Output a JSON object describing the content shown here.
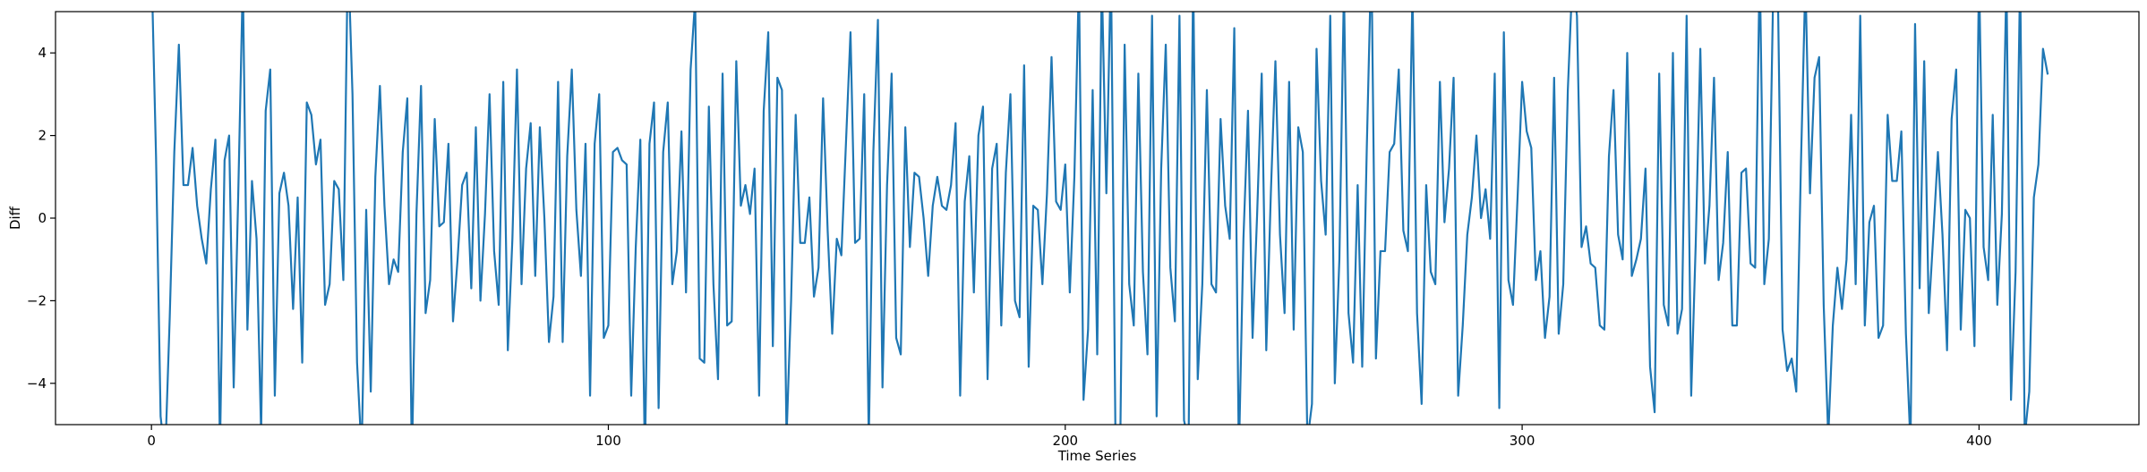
{
  "chart_data": {
    "type": "line",
    "title": "",
    "xlabel": "Time Series",
    "ylabel": "Diff",
    "xlim": [
      -21,
      435
    ],
    "ylim": [
      -5,
      5
    ],
    "xticks": [
      0,
      100,
      200,
      300,
      400
    ],
    "yticks": [
      -4,
      -2,
      0,
      2,
      4
    ],
    "grid": false,
    "legend": "none",
    "line_color": "#1f77b4",
    "series": [
      {
        "values": [
          6.2,
          1.5,
          -4.8,
          -5.8,
          -2.4,
          1.6,
          4.2,
          0.8,
          0.8,
          1.7,
          0.3,
          -0.5,
          -1.1,
          0.7,
          1.9,
          -5.6,
          1.4,
          2.0,
          -4.1,
          0.6,
          5.8,
          -2.7,
          0.9,
          -0.5,
          -5.2,
          2.6,
          3.6,
          -4.3,
          0.6,
          1.1,
          0.3,
          -2.2,
          0.5,
          -3.5,
          2.8,
          2.5,
          1.3,
          1.9,
          -2.1,
          -1.6,
          0.9,
          0.7,
          -1.5,
          6.5,
          3.0,
          -3.5,
          -5.7,
          0.2,
          -4.2,
          1.0,
          3.2,
          0.3,
          -1.6,
          -1.0,
          -1.3,
          1.6,
          2.9,
          -5.9,
          0.1,
          3.2,
          -2.3,
          -1.5,
          2.4,
          -0.2,
          -0.1,
          1.8,
          -2.5,
          -1.0,
          0.8,
          1.1,
          -1.7,
          2.2,
          -2.0,
          0.1,
          3.0,
          -0.8,
          -2.1,
          3.3,
          -3.2,
          -0.5,
          3.6,
          -1.6,
          1.2,
          2.3,
          -1.4,
          2.2,
          0.0,
          -3.0,
          -1.9,
          3.3,
          -3.0,
          1.5,
          3.6,
          0.2,
          -1.4,
          1.8,
          -4.3,
          1.8,
          3.0,
          -2.9,
          -2.6,
          1.6,
          1.7,
          1.4,
          1.3,
          -4.3,
          -0.7,
          1.9,
          -5.9,
          1.8,
          2.8,
          -4.6,
          1.6,
          2.8,
          -1.6,
          -0.8,
          2.1,
          -1.8,
          3.6,
          5.3,
          -3.4,
          -3.5,
          2.7,
          -1.6,
          -3.9,
          3.5,
          -2.6,
          -2.5,
          3.8,
          0.3,
          0.8,
          0.1,
          1.2,
          -4.3,
          2.6,
          4.5,
          -3.1,
          3.4,
          3.1,
          -5.3,
          -2.0,
          2.5,
          -0.6,
          -0.6,
          0.5,
          -1.9,
          -1.2,
          2.9,
          -0.3,
          -2.8,
          -0.5,
          -0.9,
          1.8,
          4.5,
          -0.6,
          -0.5,
          3.0,
          -5.4,
          1.6,
          4.8,
          -4.1,
          0.8,
          3.5,
          -2.9,
          -3.3,
          2.2,
          -0.7,
          1.1,
          1.0,
          0.0,
          -1.4,
          0.3,
          1.0,
          0.3,
          0.2,
          0.8,
          2.3,
          -4.3,
          0.4,
          1.5,
          -1.8,
          2.0,
          2.7,
          -3.9,
          1.2,
          1.8,
          -2.6,
          1.1,
          3.0,
          -2.0,
          -2.4,
          3.7,
          -3.6,
          0.3,
          0.2,
          -1.6,
          0.6,
          3.9,
          0.4,
          0.2,
          1.3,
          -1.8,
          1.0,
          5.8,
          -4.4,
          -2.7,
          3.1,
          -3.3,
          5.8,
          0.6,
          6.2,
          -5.4,
          -5.9,
          4.2,
          -1.6,
          -2.6,
          3.5,
          -1.3,
          -3.3,
          4.9,
          -4.8,
          1.2,
          4.2,
          -1.2,
          -2.5,
          4.9,
          -4.9,
          -5.4,
          5.9,
          -3.9,
          -1.6,
          3.1,
          -1.6,
          -1.8,
          2.4,
          0.3,
          -0.5,
          4.6,
          -5.8,
          -0.5,
          2.6,
          -2.9,
          0.1,
          3.5,
          -3.2,
          0.6,
          3.8,
          -0.4,
          -2.3,
          3.3,
          -2.7,
          2.2,
          1.6,
          -5.4,
          -4.5,
          4.1,
          0.9,
          -0.4,
          4.9,
          -4.0,
          -1.0,
          5.6,
          -2.3,
          -3.5,
          0.8,
          -3.6,
          1.7,
          6.4,
          -3.4,
          -0.8,
          -0.8,
          1.6,
          1.8,
          3.6,
          -0.3,
          -0.8,
          5.5,
          -2.3,
          -4.5,
          0.8,
          -1.3,
          -1.6,
          3.3,
          -0.1,
          1.2,
          3.4,
          -4.3,
          -2.6,
          -0.4,
          0.5,
          2.0,
          0.0,
          0.7,
          -0.5,
          3.5,
          -4.6,
          4.5,
          -1.5,
          -2.1,
          0.5,
          3.3,
          2.1,
          1.7,
          -1.5,
          -0.8,
          -2.9,
          -1.9,
          3.4,
          -2.8,
          -1.6,
          3.1,
          5.8,
          4.9,
          -0.7,
          -0.2,
          -1.1,
          -1.2,
          -2.6,
          -2.7,
          1.5,
          3.1,
          -0.4,
          -1.0,
          4.0,
          -1.4,
          -1.0,
          -0.5,
          1.2,
          -3.6,
          -4.7,
          3.5,
          -2.1,
          -2.6,
          4.0,
          -2.8,
          -2.2,
          4.9,
          -4.3,
          -0.6,
          4.1,
          -1.1,
          0.3,
          3.4,
          -1.5,
          -0.6,
          1.6,
          -2.6,
          -2.6,
          1.1,
          1.2,
          -1.1,
          -1.2,
          6.2,
          -1.6,
          -0.5,
          5.8,
          5.3,
          -2.7,
          -3.7,
          -3.4,
          -4.2,
          1.2,
          5.8,
          0.6,
          3.4,
          3.9,
          -2.1,
          -5.3,
          -2.6,
          -1.2,
          -2.2,
          -1.0,
          2.5,
          -1.6,
          4.9,
          -2.6,
          -0.1,
          0.3,
          -2.9,
          -2.6,
          2.5,
          0.9,
          0.9,
          2.1,
          -2.8,
          -5.5,
          4.7,
          -1.7,
          3.8,
          -2.3,
          -0.4,
          1.6,
          -0.4,
          -3.2,
          2.4,
          3.6,
          -2.7,
          0.2,
          0.0,
          -3.1,
          6.0,
          -0.7,
          -1.5,
          2.5,
          -2.1,
          0.1,
          5.8,
          -4.4,
          -1.3,
          5.9,
          -5.3,
          -4.2,
          0.5,
          1.3,
          4.1,
          3.5
        ]
      }
    ]
  }
}
